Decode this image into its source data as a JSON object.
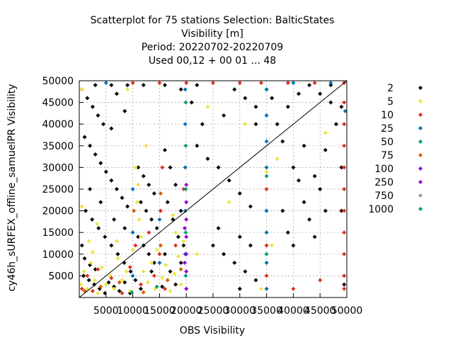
{
  "chart_data": {
    "type": "scatter",
    "title_lines": [
      "Scatterplot for   75 stations Selection: BalticStates",
      "Visibility [m]",
      "Period: 20220702-20220709",
      "Used  00,12  + 00 01 ... 48"
    ],
    "xlabel": "OBS Visibility",
    "ylabel": "cy46h_sURFEX_offline_samuelPR Visibility",
    "xlim": [
      0,
      50000
    ],
    "ylim": [
      0,
      50000
    ],
    "x_ticks": [
      5000,
      10000,
      15000,
      20000,
      25000,
      30000,
      35000,
      40000,
      45000,
      50000
    ],
    "y_ticks": [
      5000,
      10000,
      15000,
      20000,
      25000,
      30000,
      35000,
      40000,
      45000,
      50000
    ],
    "x_tick_labels": [
      "5000",
      "10000",
      "15000",
      "20000",
      "25000",
      "30000",
      "35000",
      "40000",
      "45000",
      "50000"
    ],
    "y_tick_labels": [
      "5000",
      "10000",
      "15000",
      "20000",
      "25000",
      "30000",
      "35000",
      "40000",
      "45000",
      "50000"
    ],
    "grid": true,
    "diagonal_reference_line": true,
    "legend_position": "right",
    "legend": [
      {
        "label": "2",
        "color": "#000000"
      },
      {
        "label": "5",
        "color": "#f0e442"
      },
      {
        "label": "10",
        "color": "#e0301e"
      },
      {
        "label": "25",
        "color": "#0072b2"
      },
      {
        "label": "50",
        "color": "#009e73"
      },
      {
        "label": "75",
        "color": "#d55e00"
      },
      {
        "label": "100",
        "color": "#9400d3"
      },
      {
        "label": "250",
        "color": "#9400d3"
      },
      {
        "label": "750",
        "color": "#999999"
      },
      {
        "label": "1000",
        "color": "#009e73"
      }
    ],
    "series": [
      {
        "name": "2",
        "color": "#000000",
        "points": [
          [
            500,
            48000
          ],
          [
            1500,
            46000
          ],
          [
            2500,
            44000
          ],
          [
            3500,
            42000
          ],
          [
            4500,
            40000
          ],
          [
            6000,
            39000
          ],
          [
            7000,
            47000
          ],
          [
            8500,
            43000
          ],
          [
            1000,
            37000
          ],
          [
            2000,
            35000
          ],
          [
            3000,
            33000
          ],
          [
            4000,
            31000
          ],
          [
            5000,
            29000
          ],
          [
            6000,
            27000
          ],
          [
            7000,
            25000
          ],
          [
            8000,
            23000
          ],
          [
            9000,
            21000
          ],
          [
            1200,
            20000
          ],
          [
            2400,
            18000
          ],
          [
            3600,
            16000
          ],
          [
            4800,
            14000
          ],
          [
            6000,
            12000
          ],
          [
            7200,
            10000
          ],
          [
            8400,
            8000
          ],
          [
            9600,
            6000
          ],
          [
            800,
            5000
          ],
          [
            1800,
            4000
          ],
          [
            2800,
            3000
          ],
          [
            3800,
            2000
          ],
          [
            4800,
            1000
          ],
          [
            11000,
            30000
          ],
          [
            12000,
            28000
          ],
          [
            13000,
            26000
          ],
          [
            14000,
            24000
          ],
          [
            11500,
            22000
          ],
          [
            12500,
            20000
          ],
          [
            13500,
            18000
          ],
          [
            14500,
            16000
          ],
          [
            11000,
            14000
          ],
          [
            12000,
            12000
          ],
          [
            13000,
            10000
          ],
          [
            14000,
            8000
          ],
          [
            16000,
            34000
          ],
          [
            17000,
            30000
          ],
          [
            18000,
            26000
          ],
          [
            16500,
            22000
          ],
          [
            17500,
            18000
          ],
          [
            18500,
            14000
          ],
          [
            16000,
            10000
          ],
          [
            17000,
            6000
          ],
          [
            18000,
            3000
          ],
          [
            22000,
            35000
          ],
          [
            24000,
            32000
          ],
          [
            26000,
            30000
          ],
          [
            28000,
            27000
          ],
          [
            30000,
            24000
          ],
          [
            32000,
            21000
          ],
          [
            21000,
            45000
          ],
          [
            23000,
            40000
          ],
          [
            27000,
            42000
          ],
          [
            29000,
            48000
          ],
          [
            31000,
            46000
          ],
          [
            33000,
            44000
          ],
          [
            25000,
            12000
          ],
          [
            27000,
            10000
          ],
          [
            29000,
            8000
          ],
          [
            31000,
            6000
          ],
          [
            33000,
            4000
          ],
          [
            26000,
            16000
          ],
          [
            30000,
            14000
          ],
          [
            32000,
            12000
          ],
          [
            36000,
            46000
          ],
          [
            37000,
            40000
          ],
          [
            38000,
            36000
          ],
          [
            39000,
            44000
          ],
          [
            40000,
            30000
          ],
          [
            41000,
            27000
          ],
          [
            42000,
            22000
          ],
          [
            43000,
            18000
          ],
          [
            44000,
            14000
          ],
          [
            45000,
            25000
          ],
          [
            46000,
            34000
          ],
          [
            47000,
            45000
          ],
          [
            48000,
            40000
          ],
          [
            49000,
            30000
          ],
          [
            38000,
            20000
          ],
          [
            39000,
            15000
          ],
          [
            40000,
            12000
          ],
          [
            41000,
            47000
          ],
          [
            43000,
            49000
          ],
          [
            45000,
            47000
          ],
          [
            47000,
            49000
          ],
          [
            49000,
            44000
          ],
          [
            49500,
            3000
          ],
          [
            49000,
            20000
          ],
          [
            46000,
            20000
          ],
          [
            44000,
            28000
          ],
          [
            42000,
            35000
          ],
          [
            30000,
            2000
          ],
          [
            33000,
            40000
          ],
          [
            35000,
            48000
          ],
          [
            3000,
            49000
          ],
          [
            6000,
            49000
          ],
          [
            9000,
            49000
          ],
          [
            12000,
            49000
          ],
          [
            16000,
            49000
          ],
          [
            19000,
            48000
          ],
          [
            22000,
            49000
          ],
          [
            2000,
            25000
          ],
          [
            4000,
            22000
          ],
          [
            6500,
            18000
          ],
          [
            8500,
            16000
          ],
          [
            10500,
            4000
          ],
          [
            11500,
            2000
          ],
          [
            13500,
            6000
          ],
          [
            15500,
            2500
          ],
          [
            19000,
            20000
          ],
          [
            19500,
            12000
          ],
          [
            19000,
            8000
          ],
          [
            500,
            12000
          ],
          [
            1000,
            9000
          ],
          [
            2000,
            7500
          ],
          [
            3000,
            6500
          ],
          [
            5500,
            3500
          ],
          [
            6500,
            2500
          ],
          [
            7500,
            1500
          ],
          [
            8500,
            3500
          ],
          [
            9500,
            1000
          ]
        ]
      },
      {
        "name": "5",
        "color": "#f0e442",
        "points": [
          [
            300,
            3000
          ],
          [
            900,
            6000
          ],
          [
            1500,
            2000
          ],
          [
            2200,
            8000
          ],
          [
            2900,
            4000
          ],
          [
            3500,
            1000
          ],
          [
            4200,
            7000
          ],
          [
            5000,
            3000
          ],
          [
            5800,
            5000
          ],
          [
            6500,
            2000
          ],
          [
            7200,
            9000
          ],
          [
            8000,
            4000
          ],
          [
            8800,
            6000
          ],
          [
            9500,
            1500
          ],
          [
            10500,
            30000
          ],
          [
            11000,
            26000
          ],
          [
            10800,
            22000
          ],
          [
            11200,
            18000
          ],
          [
            11500,
            14000
          ],
          [
            12000,
            6000
          ],
          [
            12800,
            3500
          ],
          [
            13500,
            8000
          ],
          [
            14200,
            2000
          ],
          [
            15500,
            4500
          ],
          [
            16200,
            7500
          ],
          [
            17000,
            1500
          ],
          [
            17800,
            5500
          ],
          [
            18500,
            9500
          ],
          [
            19000,
            3000
          ],
          [
            19500,
            13000
          ],
          [
            12500,
            35000
          ],
          [
            18000,
            15000
          ],
          [
            500,
            21000
          ],
          [
            1800,
            13000
          ],
          [
            3300,
            17000
          ],
          [
            500,
            48000
          ],
          [
            9000,
            48000
          ],
          [
            37000,
            32000
          ],
          [
            46000,
            38000
          ],
          [
            28000,
            22000
          ],
          [
            31000,
            40000
          ],
          [
            22000,
            10000
          ],
          [
            35000,
            29000
          ],
          [
            24000,
            44000
          ],
          [
            34000,
            2000
          ],
          [
            36000,
            12000
          ],
          [
            2500,
            10500
          ],
          [
            7000,
            13000
          ],
          [
            10000,
            11000
          ],
          [
            14500,
            11000
          ],
          [
            17500,
            19000
          ]
        ]
      },
      {
        "name": "10",
        "color": "#e0301e",
        "points": [
          [
            500,
            2000
          ],
          [
            1500,
            5000
          ],
          [
            2500,
            1500
          ],
          [
            3500,
            6500
          ],
          [
            6000,
            4500
          ],
          [
            8000,
            1000
          ],
          [
            9500,
            7000
          ],
          [
            10500,
            12000
          ],
          [
            11500,
            3000
          ],
          [
            13000,
            15000
          ],
          [
            14000,
            5000
          ],
          [
            15000,
            10000
          ],
          [
            15200,
            20000
          ],
          [
            15500,
            30000
          ],
          [
            16000,
            2000
          ],
          [
            18000,
            12000
          ],
          [
            19500,
            25000
          ],
          [
            10000,
            49500
          ],
          [
            15000,
            49500
          ],
          [
            20000,
            49500
          ],
          [
            25000,
            49500
          ],
          [
            30000,
            49500
          ],
          [
            34000,
            49500
          ],
          [
            39000,
            49500
          ],
          [
            44000,
            49500
          ],
          [
            49500,
            49500
          ],
          [
            49500,
            45000
          ],
          [
            49500,
            40000
          ],
          [
            49500,
            35000
          ],
          [
            49500,
            30000
          ],
          [
            49500,
            25000
          ],
          [
            49500,
            20000
          ],
          [
            49500,
            15000
          ],
          [
            49500,
            10000
          ],
          [
            49500,
            5000
          ],
          [
            49500,
            2000
          ],
          [
            35000,
            5000
          ],
          [
            35000,
            12000
          ],
          [
            35000,
            25000
          ],
          [
            40000,
            2000
          ],
          [
            45000,
            4000
          ]
        ]
      },
      {
        "name": "25",
        "color": "#0072b2",
        "points": [
          [
            10000,
            5000
          ],
          [
            10000,
            15000
          ],
          [
            10000,
            25000
          ],
          [
            15000,
            8000
          ],
          [
            15000,
            18000
          ],
          [
            19800,
            10000
          ],
          [
            19800,
            20000
          ],
          [
            19800,
            30000
          ],
          [
            19800,
            40000
          ],
          [
            19800,
            48000
          ],
          [
            35000,
            2000
          ],
          [
            35000,
            8000
          ],
          [
            35000,
            15000
          ],
          [
            35000,
            20000
          ],
          [
            35000,
            30000
          ],
          [
            35000,
            36000
          ],
          [
            35000,
            42000
          ],
          [
            35000,
            48000
          ],
          [
            5000,
            49500
          ],
          [
            40000,
            49500
          ],
          [
            47000,
            49500
          ],
          [
            49700,
            43000
          ]
        ]
      },
      {
        "name": "50",
        "color": "#009e73",
        "points": [
          [
            19900,
            5000
          ],
          [
            19900,
            15000
          ],
          [
            19900,
            25000
          ],
          [
            19900,
            35000
          ],
          [
            19900,
            45000
          ],
          [
            35000,
            10000
          ],
          [
            35000,
            28000
          ],
          [
            14500,
            2500
          ],
          [
            9800,
            1200
          ]
        ]
      },
      {
        "name": "75",
        "color": "#d55e00",
        "points": [
          [
            1000,
            1500
          ],
          [
            4000,
            2500
          ],
          [
            7500,
            3500
          ],
          [
            12000,
            1200
          ],
          [
            16500,
            4000
          ],
          [
            19000,
            6500
          ],
          [
            15200,
            12000
          ],
          [
            15200,
            24000
          ],
          [
            10200,
            20000
          ]
        ]
      },
      {
        "name": "100",
        "color": "#9400d3",
        "points": [
          [
            20000,
            2000
          ],
          [
            20000,
            6000
          ],
          [
            20000,
            10000
          ],
          [
            20000,
            14000
          ],
          [
            20000,
            18000
          ],
          [
            20000,
            22000
          ],
          [
            20000,
            26000
          ],
          [
            19700,
            8000
          ],
          [
            19700,
            16000
          ]
        ]
      }
    ]
  }
}
